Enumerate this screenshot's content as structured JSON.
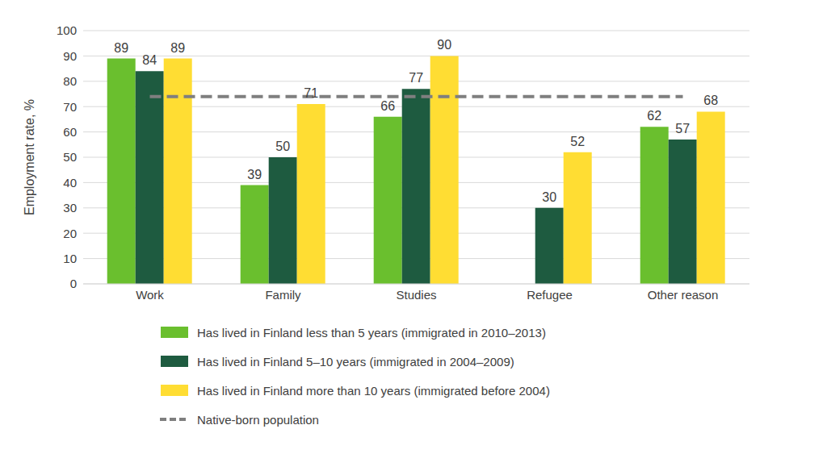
{
  "chart_data": {
    "type": "bar",
    "y_label": "Employment rate, %",
    "categories": [
      "Work",
      "Family",
      "Studies",
      "Refugee",
      "Other reason"
    ],
    "series": [
      {
        "name": "Has lived in Finland less than 5 years (immigrated in 2010–2013)",
        "color": "#6abf2e",
        "values": [
          89,
          39,
          66,
          null,
          62
        ]
      },
      {
        "name": "Has lived in Finland 5–10 years (immigrated in 2004–2009)",
        "color": "#1e5b40",
        "values": [
          84,
          50,
          77,
          30,
          57
        ]
      },
      {
        "name": "Has lived in Finland more than 10 years (immigrated before 2004)",
        "color": "#ffdd33",
        "values": [
          89,
          71,
          90,
          52,
          68
        ]
      },
      {
        "name": "Native-born population",
        "color": "#7f7f7f",
        "type": "line",
        "line_style": "dashed",
        "values": [
          74,
          74,
          74,
          74,
          74
        ]
      }
    ],
    "ylim": [
      0,
      100
    ],
    "yticks": [
      0,
      10,
      20,
      30,
      40,
      50,
      60,
      70,
      80,
      90,
      100
    ],
    "grid": true,
    "data_labels": true
  }
}
